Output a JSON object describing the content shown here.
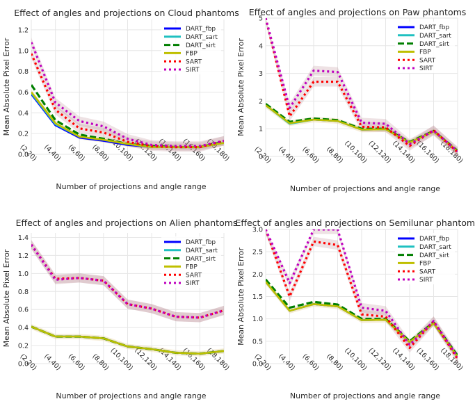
{
  "chart_data": [
    {
      "type": "line",
      "title": "Effect of angles and projections on Cloud phantoms",
      "xlabel": "Number of projections and angle range",
      "ylabel": "Mean Absolute Pixel Error",
      "categories": [
        "(2,20)",
        "(4,40)",
        "(6,60)",
        "(8,80)",
        "(10,100)",
        "(12,120)",
        "(14,140)",
        "(16,160)",
        "(18,180)"
      ],
      "ylim": [
        0,
        1.3
      ],
      "yticks": [
        "0.0",
        "0.2",
        "0.4",
        "0.6",
        "0.8",
        "1.0",
        "1.2"
      ],
      "grid": true,
      "legend_position": "top-right",
      "series": [
        {
          "name": "DART_fbp",
          "color": "#0000ff",
          "style": "solid",
          "values": [
            0.58,
            0.28,
            0.16,
            0.13,
            0.09,
            0.07,
            0.07,
            0.07,
            0.11
          ]
        },
        {
          "name": "DART_sart",
          "color": "#1fc0c0",
          "style": "solid",
          "values": [
            0.59,
            0.29,
            0.17,
            0.14,
            0.1,
            0.07,
            0.07,
            0.07,
            0.11
          ]
        },
        {
          "name": "DART_sirt",
          "color": "#007f00",
          "style": "dashed",
          "values": [
            0.67,
            0.33,
            0.19,
            0.15,
            0.1,
            0.08,
            0.07,
            0.07,
            0.12
          ]
        },
        {
          "name": "FBP",
          "color": "#bfbf00",
          "style": "solid",
          "values": [
            0.6,
            0.3,
            0.17,
            0.14,
            0.1,
            0.07,
            0.07,
            0.07,
            0.11
          ]
        },
        {
          "name": "SART",
          "color": "#ff0000",
          "style": "dotted",
          "values": [
            0.97,
            0.43,
            0.25,
            0.21,
            0.12,
            0.08,
            0.07,
            0.07,
            0.13
          ]
        },
        {
          "name": "SIRT",
          "color": "#bf00bf",
          "style": "dotted",
          "values": [
            1.08,
            0.5,
            0.32,
            0.27,
            0.15,
            0.09,
            0.08,
            0.08,
            0.13
          ]
        }
      ]
    },
    {
      "type": "line",
      "title": "Effect of angles and projections on Paw phantoms",
      "xlabel": "Number of projections and angle range",
      "ylabel": "Mean Absolute Pixel Error",
      "categories": [
        "(2,20)",
        "(4,40)",
        "(6,60)",
        "(8,80)",
        "(10,100)",
        "(12,120)",
        "(14,140)",
        "(16,160)",
        "(18,180)"
      ],
      "ylim": [
        0,
        5
      ],
      "yticks": [
        "0",
        "1",
        "2",
        "3",
        "4",
        "5"
      ],
      "grid": true,
      "legend_position": "top-right",
      "series": [
        {
          "name": "DART_fbp",
          "color": "#0000ff",
          "style": "solid",
          "values": [
            1.85,
            1.2,
            1.33,
            1.28,
            0.97,
            0.98,
            0.5,
            0.9,
            0.18
          ]
        },
        {
          "name": "DART_sart",
          "color": "#1fc0c0",
          "style": "solid",
          "values": [
            1.85,
            1.18,
            1.33,
            1.28,
            0.97,
            0.98,
            0.5,
            0.9,
            0.18
          ]
        },
        {
          "name": "DART_sirt",
          "color": "#007f00",
          "style": "dashed",
          "values": [
            1.9,
            1.25,
            1.37,
            1.31,
            1.0,
            1.0,
            0.52,
            0.92,
            0.2
          ]
        },
        {
          "name": "FBP",
          "color": "#bfbf00",
          "style": "solid",
          "values": [
            1.85,
            1.2,
            1.33,
            1.28,
            0.97,
            0.98,
            0.5,
            0.9,
            0.18
          ]
        },
        {
          "name": "SART",
          "color": "#ff0000",
          "style": "dotted",
          "values": [
            5.0,
            1.45,
            2.7,
            2.7,
            1.07,
            1.05,
            0.38,
            0.95,
            0.15
          ]
        },
        {
          "name": "SIRT",
          "color": "#bf00bf",
          "style": "dotted",
          "values": [
            5.0,
            1.75,
            3.1,
            3.05,
            1.22,
            1.18,
            0.45,
            0.93,
            0.18
          ]
        }
      ]
    },
    {
      "type": "line",
      "title": "Effect of angles and projections on Alien phantoms",
      "xlabel": "Number of projections and angle range",
      "ylabel": "Mean Absolute Pixel Error",
      "categories": [
        "(2,20)",
        "(4,40)",
        "(6,60)",
        "(8,80)",
        "(10,100)",
        "(12,120)",
        "(14,140)",
        "(16,160)",
        "(18,180)"
      ],
      "ylim": [
        0,
        1.45
      ],
      "yticks": [
        "0.0",
        "0.2",
        "0.4",
        "0.6",
        "0.8",
        "1.0",
        "1.2",
        "1.4"
      ],
      "grid": true,
      "legend_position": "top-right",
      "series": [
        {
          "name": "DART_fbp",
          "color": "#0000ff",
          "style": "solid",
          "values": [
            0.41,
            0.3,
            0.3,
            0.28,
            0.19,
            0.16,
            0.12,
            0.11,
            0.14
          ]
        },
        {
          "name": "DART_sart",
          "color": "#1fc0c0",
          "style": "solid",
          "values": [
            0.41,
            0.3,
            0.3,
            0.28,
            0.19,
            0.16,
            0.12,
            0.11,
            0.14
          ]
        },
        {
          "name": "DART_sirt",
          "color": "#007f00",
          "style": "dashed",
          "values": [
            0.41,
            0.3,
            0.3,
            0.28,
            0.19,
            0.16,
            0.12,
            0.11,
            0.14
          ]
        },
        {
          "name": "FBP",
          "color": "#bfbf00",
          "style": "solid",
          "values": [
            0.41,
            0.3,
            0.3,
            0.28,
            0.19,
            0.16,
            0.12,
            0.11,
            0.14
          ]
        },
        {
          "name": "SART",
          "color": "#ff0000",
          "style": "dotted",
          "values": [
            1.32,
            0.94,
            0.95,
            0.92,
            0.66,
            0.61,
            0.52,
            0.51,
            0.59
          ]
        },
        {
          "name": "SIRT",
          "color": "#bf00bf",
          "style": "dotted",
          "values": [
            1.32,
            0.93,
            0.95,
            0.92,
            0.66,
            0.61,
            0.52,
            0.51,
            0.59
          ]
        }
      ]
    },
    {
      "type": "line",
      "title": "Effect of angles and projections on Semilunar phantoms",
      "xlabel": "Number of projections and angle range",
      "ylabel": "Mean Absolute Pixel Error",
      "categories": [
        "(2,20)",
        "(4,40)",
        "(6,60)",
        "(8,80)",
        "(10,100)",
        "(12,120)",
        "(14,140)",
        "(16,160)",
        "(18,180)"
      ],
      "ylim": [
        0,
        3.0
      ],
      "yticks": [
        "0.0",
        "0.5",
        "1.0",
        "1.5",
        "2.0",
        "2.5",
        "3.0"
      ],
      "grid": true,
      "legend_position": "top-right",
      "series": [
        {
          "name": "DART_fbp",
          "color": "#0000ff",
          "style": "solid",
          "values": [
            1.83,
            1.18,
            1.33,
            1.28,
            0.97,
            0.98,
            0.48,
            0.9,
            0.15
          ]
        },
        {
          "name": "DART_sart",
          "color": "#1fc0c0",
          "style": "solid",
          "values": [
            1.83,
            1.18,
            1.33,
            1.28,
            0.97,
            0.98,
            0.48,
            0.9,
            0.15
          ]
        },
        {
          "name": "DART_sirt",
          "color": "#007f00",
          "style": "dashed",
          "values": [
            1.88,
            1.25,
            1.38,
            1.32,
            1.0,
            1.0,
            0.5,
            0.92,
            0.18
          ]
        },
        {
          "name": "FBP",
          "color": "#bfbf00",
          "style": "solid",
          "values": [
            1.83,
            1.18,
            1.33,
            1.28,
            0.97,
            0.98,
            0.48,
            0.9,
            0.15
          ]
        },
        {
          "name": "SART",
          "color": "#ff0000",
          "style": "dotted",
          "values": [
            3.0,
            1.5,
            2.73,
            2.65,
            1.1,
            1.05,
            0.35,
            0.95,
            0.1
          ]
        },
        {
          "name": "SIRT",
          "color": "#bf00bf",
          "style": "dotted",
          "values": [
            3.0,
            1.8,
            3.0,
            3.0,
            1.25,
            1.18,
            0.42,
            0.95,
            0.15
          ]
        }
      ]
    }
  ]
}
